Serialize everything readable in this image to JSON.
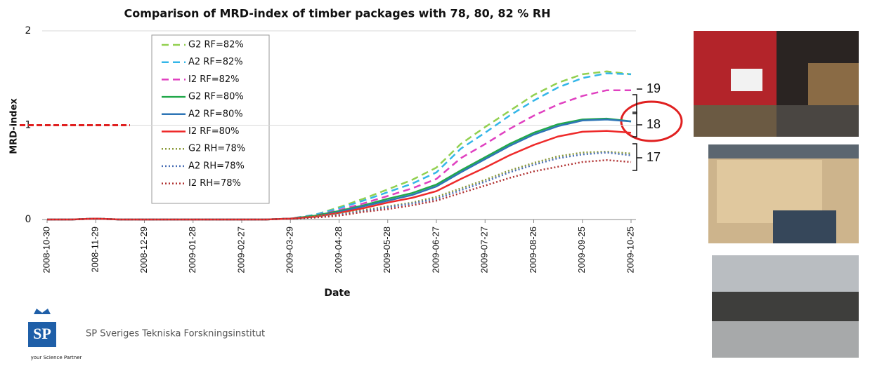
{
  "chart_data": {
    "type": "line",
    "title": "Comparison of MRD-index of timber packages with 78, 80, 82 % RH",
    "x_label": "Date",
    "y_label": "MRD-index",
    "x": [
      "2008-10-30",
      "2008-11-14",
      "2008-11-29",
      "2008-12-14",
      "2008-12-29",
      "2009-01-13",
      "2009-01-28",
      "2009-02-12",
      "2009-02-27",
      "2009-03-14",
      "2009-03-29",
      "2009-04-13",
      "2009-04-28",
      "2009-05-13",
      "2009-05-28",
      "2009-06-12",
      "2009-06-27",
      "2009-07-12",
      "2009-07-27",
      "2009-08-11",
      "2009-08-26",
      "2009-09-10",
      "2009-09-25",
      "2009-10-10",
      "2009-10-25"
    ],
    "xlim": [
      "2008-10-30",
      "2009-10-25"
    ],
    "xticks": [
      "2008-10-30",
      "2008-11-29",
      "2008-12-29",
      "2009-01-28",
      "2009-02-27",
      "2009-03-29",
      "2009-04-28",
      "2009-05-28",
      "2009-06-27",
      "2009-07-27",
      "2009-08-26",
      "2009-09-25",
      "2009-10-25"
    ],
    "ylim": [
      0,
      2
    ],
    "yticks": [
      0,
      1,
      2
    ],
    "grid": true,
    "series": [
      {
        "name": "G2 RF=82%",
        "color": "#92d050",
        "dash": "dashed",
        "values": [
          0,
          0,
          0.01,
          0,
          0,
          0,
          0,
          0,
          0,
          0,
          0.01,
          0.05,
          0.13,
          0.22,
          0.32,
          0.42,
          0.55,
          0.8,
          0.98,
          1.15,
          1.32,
          1.45,
          1.54,
          1.57,
          1.54
        ]
      },
      {
        "name": "A2 RF=82%",
        "color": "#33b6e8",
        "dash": "dashed",
        "values": [
          0,
          0,
          0.01,
          0,
          0,
          0,
          0,
          0,
          0,
          0,
          0.01,
          0.05,
          0.12,
          0.2,
          0.29,
          0.38,
          0.5,
          0.75,
          0.92,
          1.1,
          1.26,
          1.4,
          1.5,
          1.55,
          1.54
        ]
      },
      {
        "name": "I2 RF=82%",
        "color": "#e040c0",
        "dash": "dashed",
        "values": [
          0,
          0,
          0.01,
          0,
          0,
          0,
          0,
          0,
          0,
          0,
          0.01,
          0.04,
          0.1,
          0.17,
          0.25,
          0.33,
          0.43,
          0.65,
          0.8,
          0.96,
          1.1,
          1.22,
          1.31,
          1.37,
          1.37
        ]
      },
      {
        "name": "G2 RF=80%",
        "color": "#21a84a",
        "dash": "solid",
        "values": [
          0,
          0,
          0.01,
          0,
          0,
          0,
          0,
          0,
          0,
          0,
          0.01,
          0.04,
          0.09,
          0.15,
          0.22,
          0.28,
          0.37,
          0.52,
          0.66,
          0.8,
          0.92,
          1.01,
          1.06,
          1.07,
          1.04
        ]
      },
      {
        "name": "A2 RF=80%",
        "color": "#2e75b6",
        "dash": "solid",
        "values": [
          0,
          0,
          0.01,
          0,
          0,
          0,
          0,
          0,
          0,
          0,
          0.01,
          0.03,
          0.08,
          0.14,
          0.2,
          0.26,
          0.35,
          0.5,
          0.64,
          0.78,
          0.9,
          0.99,
          1.05,
          1.06,
          1.04
        ]
      },
      {
        "name": "I2 RF=80%",
        "color": "#ee2a2a",
        "dash": "solid",
        "values": [
          0,
          0,
          0.01,
          0,
          0,
          0,
          0,
          0,
          0,
          0,
          0.01,
          0.03,
          0.07,
          0.12,
          0.18,
          0.23,
          0.3,
          0.43,
          0.55,
          0.68,
          0.79,
          0.88,
          0.93,
          0.94,
          0.92
        ]
      },
      {
        "name": "G2 RH=78%",
        "color": "#8a9a3a",
        "dash": "dotted",
        "values": [
          0,
          0,
          0.01,
          0,
          0,
          0,
          0,
          0,
          0,
          0,
          0.01,
          0.03,
          0.06,
          0.1,
          0.14,
          0.18,
          0.24,
          0.33,
          0.42,
          0.52,
          0.6,
          0.67,
          0.71,
          0.72,
          0.7
        ]
      },
      {
        "name": "A2 RH=78%",
        "color": "#4a6fb5",
        "dash": "dotted",
        "values": [
          0,
          0,
          0.01,
          0,
          0,
          0,
          0,
          0,
          0,
          0,
          0.01,
          0.02,
          0.05,
          0.09,
          0.13,
          0.17,
          0.22,
          0.31,
          0.4,
          0.5,
          0.58,
          0.65,
          0.69,
          0.71,
          0.68
        ]
      },
      {
        "name": "I2 RH=78%",
        "color": "#b03030",
        "dash": "dotted",
        "values": [
          0,
          0,
          0.01,
          0,
          0,
          0,
          0,
          0,
          0,
          0,
          0.01,
          0.02,
          0.04,
          0.08,
          0.11,
          0.15,
          0.2,
          0.28,
          0.36,
          0.44,
          0.51,
          0.56,
          0.61,
          0.63,
          0.61
        ]
      }
    ],
    "annotations": [
      "19",
      "18",
      "17"
    ]
  },
  "footer": {
    "logo": "SP",
    "logo_tagline": "your Science Partner",
    "organization": "SP Sveriges Tekniska Forskningsinstitut"
  }
}
